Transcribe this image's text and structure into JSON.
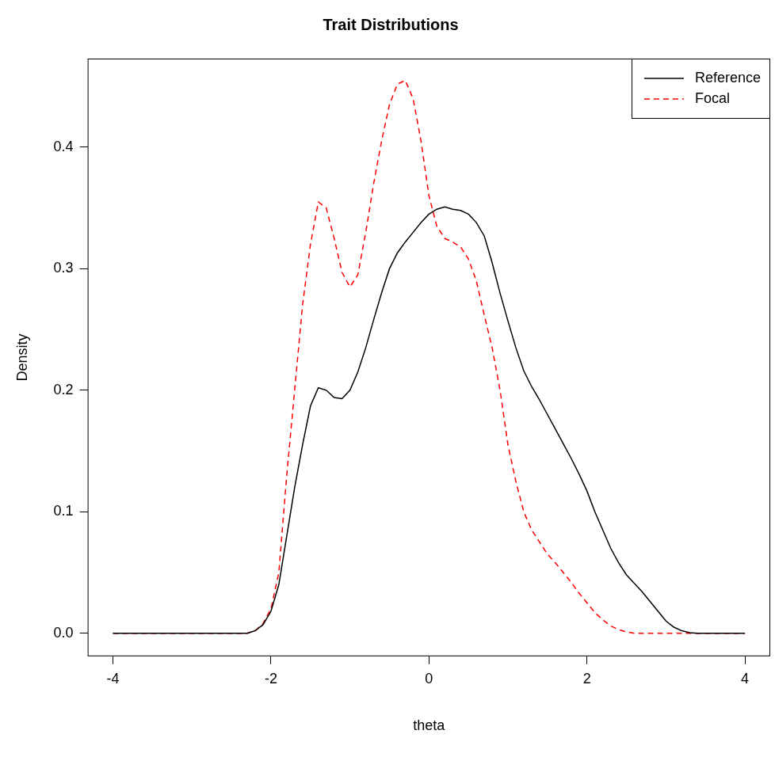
{
  "chart_data": {
    "type": "line",
    "title": "Trait Distributions",
    "x_label": "theta",
    "y_label": "Density",
    "x": [
      -4.0,
      -3.9,
      -3.8,
      -3.7,
      -3.6,
      -3.5,
      -3.4,
      -3.3,
      -3.2,
      -3.1,
      -3.0,
      -2.9,
      -2.8,
      -2.7,
      -2.6,
      -2.5,
      -2.4,
      -2.3,
      -2.2,
      -2.1,
      -2.0,
      -1.9,
      -1.8,
      -1.7,
      -1.6,
      -1.5,
      -1.4,
      -1.3,
      -1.2,
      -1.1,
      -1.0,
      -0.9,
      -0.8,
      -0.7,
      -0.6,
      -0.5,
      -0.4,
      -0.3,
      -0.2,
      -0.1,
      0.0,
      0.1,
      0.2,
      0.3,
      0.4,
      0.5,
      0.6,
      0.7,
      0.8,
      0.9,
      1.0,
      1.1,
      1.2,
      1.3,
      1.4,
      1.5,
      1.6,
      1.7,
      1.8,
      1.9,
      2.0,
      2.1,
      2.2,
      2.3,
      2.4,
      2.5,
      2.6,
      2.7,
      2.8,
      2.9,
      3.0,
      3.1,
      3.2,
      3.3,
      3.4,
      3.5,
      3.6,
      3.7,
      3.8,
      3.9,
      4.0
    ],
    "series": [
      {
        "name": "Reference",
        "color": "#000000",
        "line_style": "solid",
        "values": [
          0,
          0,
          0,
          0,
          0,
          0,
          0,
          0,
          0,
          0,
          0,
          0,
          0,
          0,
          0,
          0,
          0,
          0,
          0.002,
          0.007,
          0.018,
          0.04,
          0.08,
          0.12,
          0.155,
          0.187,
          0.202,
          0.2,
          0.194,
          0.193,
          0.2,
          0.215,
          0.235,
          0.258,
          0.28,
          0.3,
          0.313,
          0.322,
          0.33,
          0.338,
          0.345,
          0.349,
          0.351,
          0.349,
          0.348,
          0.345,
          0.338,
          0.327,
          0.305,
          0.28,
          0.257,
          0.235,
          0.216,
          0.203,
          0.192,
          0.18,
          0.168,
          0.156,
          0.144,
          0.131,
          0.117,
          0.1,
          0.085,
          0.07,
          0.058,
          0.048,
          0.041,
          0.034,
          0.026,
          0.018,
          0.01,
          0.005,
          0.002,
          0.0005,
          0,
          0,
          0,
          0,
          0,
          0,
          0
        ]
      },
      {
        "name": "Focal",
        "color": "#ff0000",
        "line_style": "dashed",
        "values": [
          0,
          0,
          0,
          0,
          0,
          0,
          0,
          0,
          0,
          0,
          0,
          0,
          0,
          0,
          0,
          0,
          0,
          0,
          0.002,
          0.008,
          0.02,
          0.05,
          0.13,
          0.2,
          0.27,
          0.32,
          0.355,
          0.35,
          0.325,
          0.297,
          0.285,
          0.295,
          0.33,
          0.37,
          0.405,
          0.435,
          0.452,
          0.455,
          0.44,
          0.405,
          0.36,
          0.335,
          0.325,
          0.322,
          0.318,
          0.308,
          0.29,
          0.262,
          0.235,
          0.2,
          0.155,
          0.125,
          0.1,
          0.085,
          0.075,
          0.065,
          0.058,
          0.05,
          0.042,
          0.033,
          0.025,
          0.017,
          0.011,
          0.006,
          0.003,
          0.001,
          0,
          0,
          0,
          0,
          0,
          0,
          0,
          0,
          0,
          0,
          0,
          0,
          0,
          0,
          0
        ]
      }
    ],
    "xlim": [
      -4.32,
      4.32
    ],
    "xticks": [
      -4,
      -2,
      0,
      2,
      4
    ],
    "ylim": [
      -0.019,
      0.473
    ],
    "yticks": [
      {
        "value": 0,
        "label": "0.0"
      },
      0.1,
      0.2,
      0.3,
      0.4
    ],
    "grid": false,
    "legend": "top-right"
  }
}
